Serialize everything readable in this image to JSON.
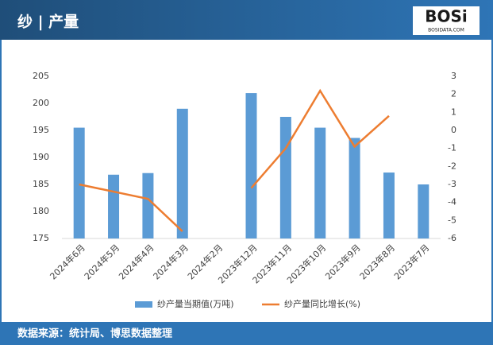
{
  "header": {
    "title": "纱 | 产量",
    "logo": "BOSi",
    "logo_sub": "BOSIDATA.COM"
  },
  "footer": {
    "source": "数据来源：统计局、博思数据整理"
  },
  "chart_data": {
    "type": "bar",
    "categories": [
      "2024年6月",
      "2024年5月",
      "2024年4月",
      "2024年3月",
      "2024年2月",
      "2023年12月",
      "2023年11月",
      "2023年10月",
      "2023年9月",
      "2023年8月",
      "2023年7月"
    ],
    "series": [
      {
        "name": "纱产量当期值(万吨)",
        "type": "bar",
        "color": "#5b9bd5",
        "values": [
          195.5,
          186.8,
          187.1,
          199,
          null,
          201.9,
          197.5,
          195.5,
          193.6,
          187.2,
          185
        ]
      },
      {
        "name": "纱产量同比增长(%)",
        "type": "line",
        "axis": "y2",
        "color": "#ed7d31",
        "values": [
          -3.0,
          -3.4,
          -3.8,
          -5.6,
          null,
          -3.2,
          -1.0,
          2.2,
          -0.9,
          0.8,
          null
        ]
      }
    ],
    "ylim": [
      175,
      205
    ],
    "yticks": [
      175,
      180,
      185,
      190,
      195,
      200,
      205
    ],
    "y2lim": [
      -6,
      3
    ],
    "y2ticks": [
      -6,
      -5,
      -4,
      -3,
      -2,
      -1,
      0,
      1,
      2,
      3
    ],
    "grid": false,
    "legend": "bottom"
  }
}
